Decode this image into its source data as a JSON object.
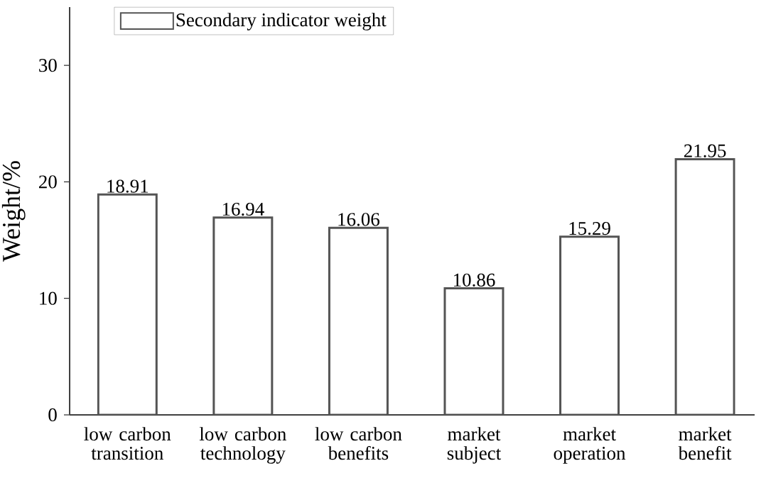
{
  "chart_data": {
    "type": "bar",
    "ylabel": "Weight/%",
    "categories": [
      "low carbon transition",
      "low carbon technology",
      "low carbon benefits",
      "market subject",
      "market operation",
      "market benefit"
    ],
    "series": [
      {
        "name": "Secondary indicator weight",
        "color": "#ffffff",
        "values": [
          18.91,
          16.94,
          16.06,
          10.86,
          15.29,
          21.95
        ]
      }
    ],
    "ylim": [
      0,
      35
    ],
    "yticks": [
      0,
      10,
      20,
      30
    ],
    "data_labels": true,
    "legend": "top left",
    "grid": false
  }
}
